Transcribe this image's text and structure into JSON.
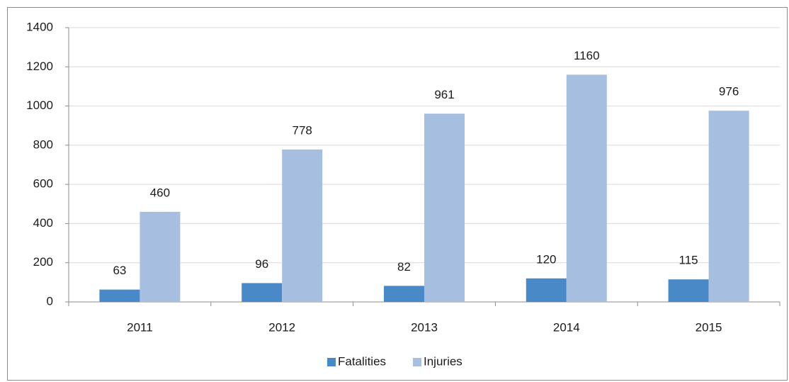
{
  "chart_data": {
    "type": "bar",
    "categories": [
      "2011",
      "2012",
      "2013",
      "2014",
      "2015"
    ],
    "series": [
      {
        "name": "Fatalities",
        "color": "#4a89c8",
        "values": [
          63,
          96,
          82,
          120,
          115
        ]
      },
      {
        "name": "Injuries",
        "color": "#a6bfe1",
        "values": [
          460,
          778,
          961,
          1160,
          976
        ]
      }
    ],
    "ylim": [
      0,
      1400
    ],
    "yticks": [
      0,
      200,
      400,
      600,
      800,
      1000,
      1200,
      1400
    ],
    "grid": true,
    "legend": "bottom"
  }
}
